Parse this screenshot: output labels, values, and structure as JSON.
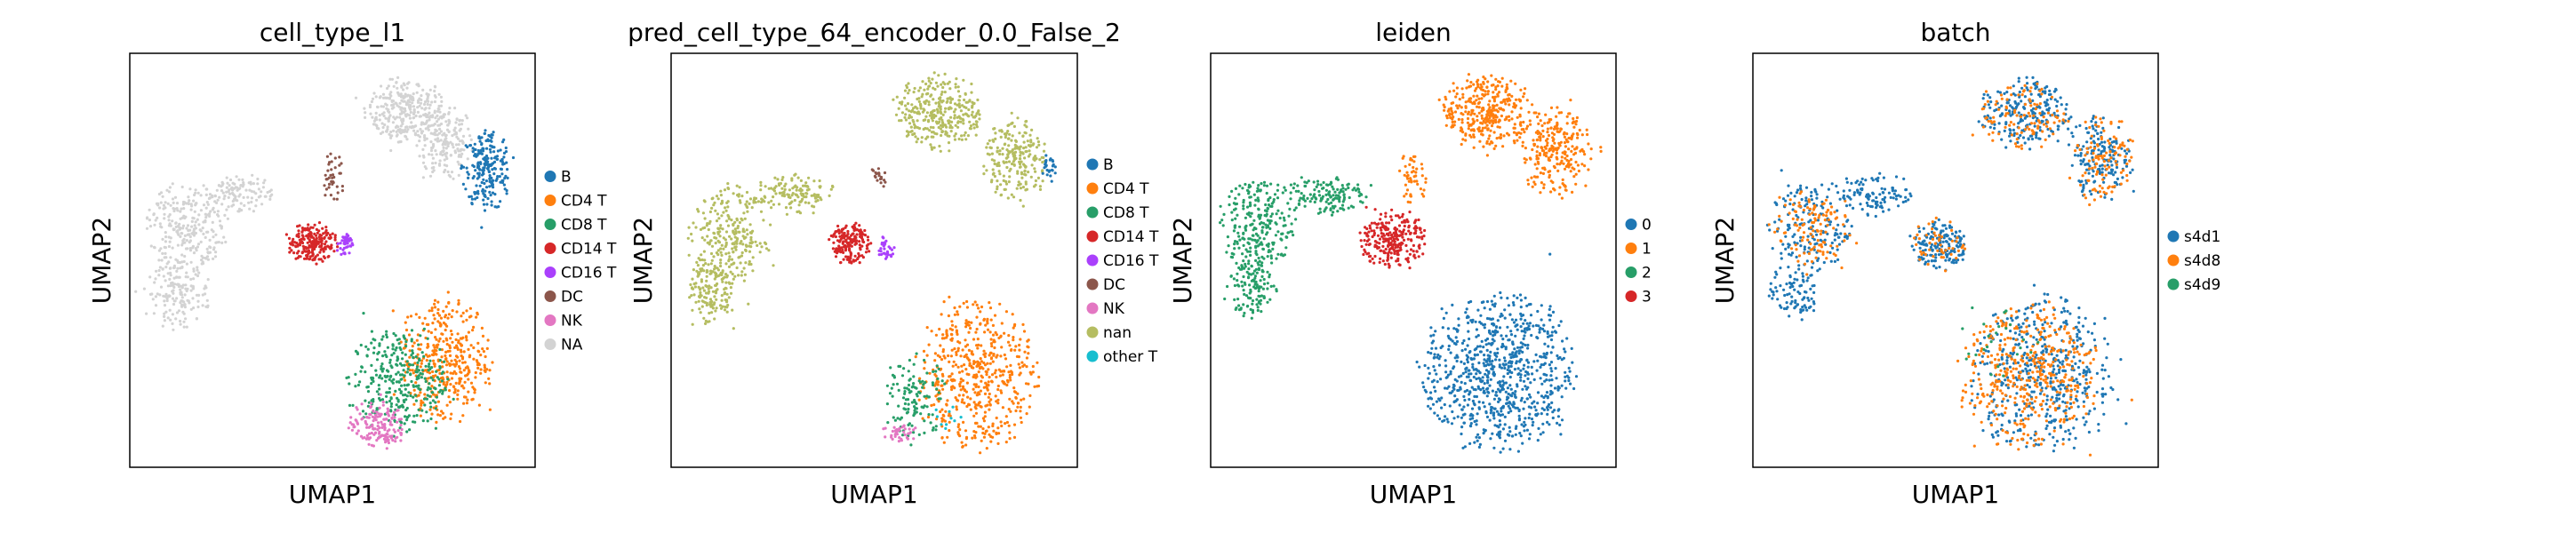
{
  "chart_data": [
    {
      "type": "scatter",
      "title": "cell_type_l1",
      "xlabel": "UMAP1",
      "ylabel": "UMAP2",
      "ticks": false,
      "legend_placement": "right",
      "legend": [
        {
          "label": "B",
          "color": "#1f77b4"
        },
        {
          "label": "CD4 T",
          "color": "#ff7f0e"
        },
        {
          "label": "CD8 T",
          "color": "#279e68"
        },
        {
          "label": "CD14 T",
          "color": "#d62728"
        },
        {
          "label": "CD16 T",
          "color": "#aa40fc"
        },
        {
          "label": "DC",
          "color": "#8c564b"
        },
        {
          "label": "NK",
          "color": "#e377c2"
        },
        {
          "label": "NA",
          "color": "#d3d3d3"
        }
      ],
      "regions": [
        {
          "category": "NA",
          "cx": 0.68,
          "cy": 0.86,
          "rx": 0.1,
          "ry": 0.08,
          "n": 300
        },
        {
          "category": "NA",
          "cx": 0.78,
          "cy": 0.78,
          "rx": 0.07,
          "ry": 0.09,
          "n": 180
        },
        {
          "category": "B",
          "cx": 0.88,
          "cy": 0.72,
          "rx": 0.06,
          "ry": 0.1,
          "n": 220
        },
        {
          "category": "NA",
          "cx": 0.14,
          "cy": 0.58,
          "rx": 0.1,
          "ry": 0.11,
          "n": 260
        },
        {
          "category": "NA",
          "cx": 0.12,
          "cy": 0.42,
          "rx": 0.08,
          "ry": 0.08,
          "n": 160
        },
        {
          "category": "NA",
          "cx": 0.27,
          "cy": 0.66,
          "rx": 0.08,
          "ry": 0.05,
          "n": 110
        },
        {
          "category": "DC",
          "cx": 0.5,
          "cy": 0.7,
          "rx": 0.03,
          "ry": 0.06,
          "n": 40
        },
        {
          "category": "CD14 T",
          "cx": 0.45,
          "cy": 0.54,
          "rx": 0.06,
          "ry": 0.05,
          "n": 200
        },
        {
          "category": "CD16 T",
          "cx": 0.53,
          "cy": 0.54,
          "rx": 0.02,
          "ry": 0.03,
          "n": 40
        },
        {
          "category": "CD4 T",
          "cx": 0.78,
          "cy": 0.26,
          "rx": 0.11,
          "ry": 0.16,
          "n": 380
        },
        {
          "category": "CD8 T",
          "cx": 0.66,
          "cy": 0.21,
          "rx": 0.12,
          "ry": 0.13,
          "n": 320
        },
        {
          "category": "NK",
          "cx": 0.61,
          "cy": 0.1,
          "rx": 0.07,
          "ry": 0.06,
          "n": 150
        }
      ]
    },
    {
      "type": "scatter",
      "title": "pred_cell_type_64_encoder_0.0_False_2",
      "xlabel": "UMAP1",
      "ylabel": "UMAP2",
      "ticks": false,
      "legend_placement": "right",
      "legend": [
        {
          "label": "B",
          "color": "#1f77b4"
        },
        {
          "label": "CD4 T",
          "color": "#ff7f0e"
        },
        {
          "label": "CD8 T",
          "color": "#279e68"
        },
        {
          "label": "CD14 T",
          "color": "#d62728"
        },
        {
          "label": "CD16 T",
          "color": "#aa40fc"
        },
        {
          "label": "DC",
          "color": "#8c564b"
        },
        {
          "label": "NK",
          "color": "#e377c2"
        },
        {
          "label": "nan",
          "color": "#b5bd61"
        },
        {
          "label": "other T",
          "color": "#17becf"
        }
      ],
      "regions": [
        {
          "category": "nan",
          "cx": 0.66,
          "cy": 0.86,
          "rx": 0.11,
          "ry": 0.09,
          "n": 320
        },
        {
          "category": "nan",
          "cx": 0.85,
          "cy": 0.74,
          "rx": 0.08,
          "ry": 0.1,
          "n": 220
        },
        {
          "category": "B",
          "cx": 0.93,
          "cy": 0.72,
          "rx": 0.02,
          "ry": 0.04,
          "n": 25
        },
        {
          "category": "nan",
          "cx": 0.14,
          "cy": 0.56,
          "rx": 0.1,
          "ry": 0.12,
          "n": 260
        },
        {
          "category": "nan",
          "cx": 0.1,
          "cy": 0.42,
          "rx": 0.06,
          "ry": 0.08,
          "n": 140
        },
        {
          "category": "nan",
          "cx": 0.3,
          "cy": 0.66,
          "rx": 0.1,
          "ry": 0.05,
          "n": 130
        },
        {
          "category": "DC",
          "cx": 0.51,
          "cy": 0.7,
          "rx": 0.02,
          "ry": 0.04,
          "n": 20
        },
        {
          "category": "CD14 T",
          "cx": 0.44,
          "cy": 0.54,
          "rx": 0.05,
          "ry": 0.05,
          "n": 170
        },
        {
          "category": "CD16 T",
          "cx": 0.53,
          "cy": 0.53,
          "rx": 0.02,
          "ry": 0.03,
          "n": 30
        },
        {
          "category": "CD4 T",
          "cx": 0.75,
          "cy": 0.22,
          "rx": 0.15,
          "ry": 0.18,
          "n": 520
        },
        {
          "category": "CD8 T",
          "cx": 0.6,
          "cy": 0.17,
          "rx": 0.08,
          "ry": 0.1,
          "n": 120
        },
        {
          "category": "NK",
          "cx": 0.57,
          "cy": 0.08,
          "rx": 0.05,
          "ry": 0.03,
          "n": 40
        },
        {
          "category": "other T",
          "cx": 0.68,
          "cy": 0.12,
          "rx": 0.04,
          "ry": 0.03,
          "n": 10
        }
      ]
    },
    {
      "type": "scatter",
      "title": "leiden",
      "xlabel": "UMAP1",
      "ylabel": "UMAP2",
      "ticks": false,
      "legend_placement": "right",
      "legend": [
        {
          "label": "0",
          "color": "#1f77b4"
        },
        {
          "label": "1",
          "color": "#ff7f0e"
        },
        {
          "label": "2",
          "color": "#279e68"
        },
        {
          "label": "3",
          "color": "#d62728"
        }
      ],
      "regions": [
        {
          "category": "1",
          "cx": 0.68,
          "cy": 0.86,
          "rx": 0.11,
          "ry": 0.09,
          "n": 340
        },
        {
          "category": "1",
          "cx": 0.85,
          "cy": 0.76,
          "rx": 0.09,
          "ry": 0.11,
          "n": 260
        },
        {
          "category": "1",
          "cx": 0.5,
          "cy": 0.7,
          "rx": 0.04,
          "ry": 0.06,
          "n": 50
        },
        {
          "category": "2",
          "cx": 0.12,
          "cy": 0.58,
          "rx": 0.09,
          "ry": 0.12,
          "n": 260
        },
        {
          "category": "2",
          "cx": 0.1,
          "cy": 0.43,
          "rx": 0.06,
          "ry": 0.07,
          "n": 110
        },
        {
          "category": "2",
          "cx": 0.28,
          "cy": 0.66,
          "rx": 0.1,
          "ry": 0.05,
          "n": 140
        },
        {
          "category": "3",
          "cx": 0.45,
          "cy": 0.55,
          "rx": 0.08,
          "ry": 0.07,
          "n": 260
        },
        {
          "category": "0",
          "cx": 0.71,
          "cy": 0.23,
          "rx": 0.19,
          "ry": 0.19,
          "n": 820
        }
      ]
    },
    {
      "type": "scatter",
      "title": "batch",
      "xlabel": "UMAP1",
      "ylabel": "UMAP2",
      "ticks": false,
      "legend_placement": "right",
      "legend": [
        {
          "label": "s4d1",
          "color": "#1f77b4"
        },
        {
          "label": "s4d8",
          "color": "#ff7f0e"
        },
        {
          "label": "s4d9",
          "color": "#279e68"
        }
      ],
      "regions": [
        {
          "category": "s4d1",
          "cx": 0.67,
          "cy": 0.85,
          "rx": 0.11,
          "ry": 0.09,
          "n": 220
        },
        {
          "category": "s4d8",
          "cx": 0.67,
          "cy": 0.85,
          "rx": 0.11,
          "ry": 0.09,
          "n": 110
        },
        {
          "category": "s4d1",
          "cx": 0.86,
          "cy": 0.75,
          "rx": 0.08,
          "ry": 0.11,
          "n": 170
        },
        {
          "category": "s4d8",
          "cx": 0.86,
          "cy": 0.75,
          "rx": 0.08,
          "ry": 0.11,
          "n": 110
        },
        {
          "category": "s4d1",
          "cx": 0.14,
          "cy": 0.58,
          "rx": 0.1,
          "ry": 0.11,
          "n": 170
        },
        {
          "category": "s4d8",
          "cx": 0.14,
          "cy": 0.58,
          "rx": 0.1,
          "ry": 0.11,
          "n": 120
        },
        {
          "category": "s4d1",
          "cx": 0.1,
          "cy": 0.42,
          "rx": 0.06,
          "ry": 0.07,
          "n": 90
        },
        {
          "category": "s4d1",
          "cx": 0.3,
          "cy": 0.66,
          "rx": 0.1,
          "ry": 0.05,
          "n": 110
        },
        {
          "category": "s4d1",
          "cx": 0.46,
          "cy": 0.54,
          "rx": 0.07,
          "ry": 0.06,
          "n": 160
        },
        {
          "category": "s4d8",
          "cx": 0.46,
          "cy": 0.54,
          "rx": 0.07,
          "ry": 0.06,
          "n": 50
        },
        {
          "category": "s4d1",
          "cx": 0.72,
          "cy": 0.22,
          "rx": 0.18,
          "ry": 0.19,
          "n": 480
        },
        {
          "category": "s4d8",
          "cx": 0.68,
          "cy": 0.22,
          "rx": 0.17,
          "ry": 0.18,
          "n": 420
        },
        {
          "category": "s4d9",
          "cx": 0.6,
          "cy": 0.3,
          "rx": 0.1,
          "ry": 0.1,
          "n": 25
        }
      ]
    }
  ]
}
